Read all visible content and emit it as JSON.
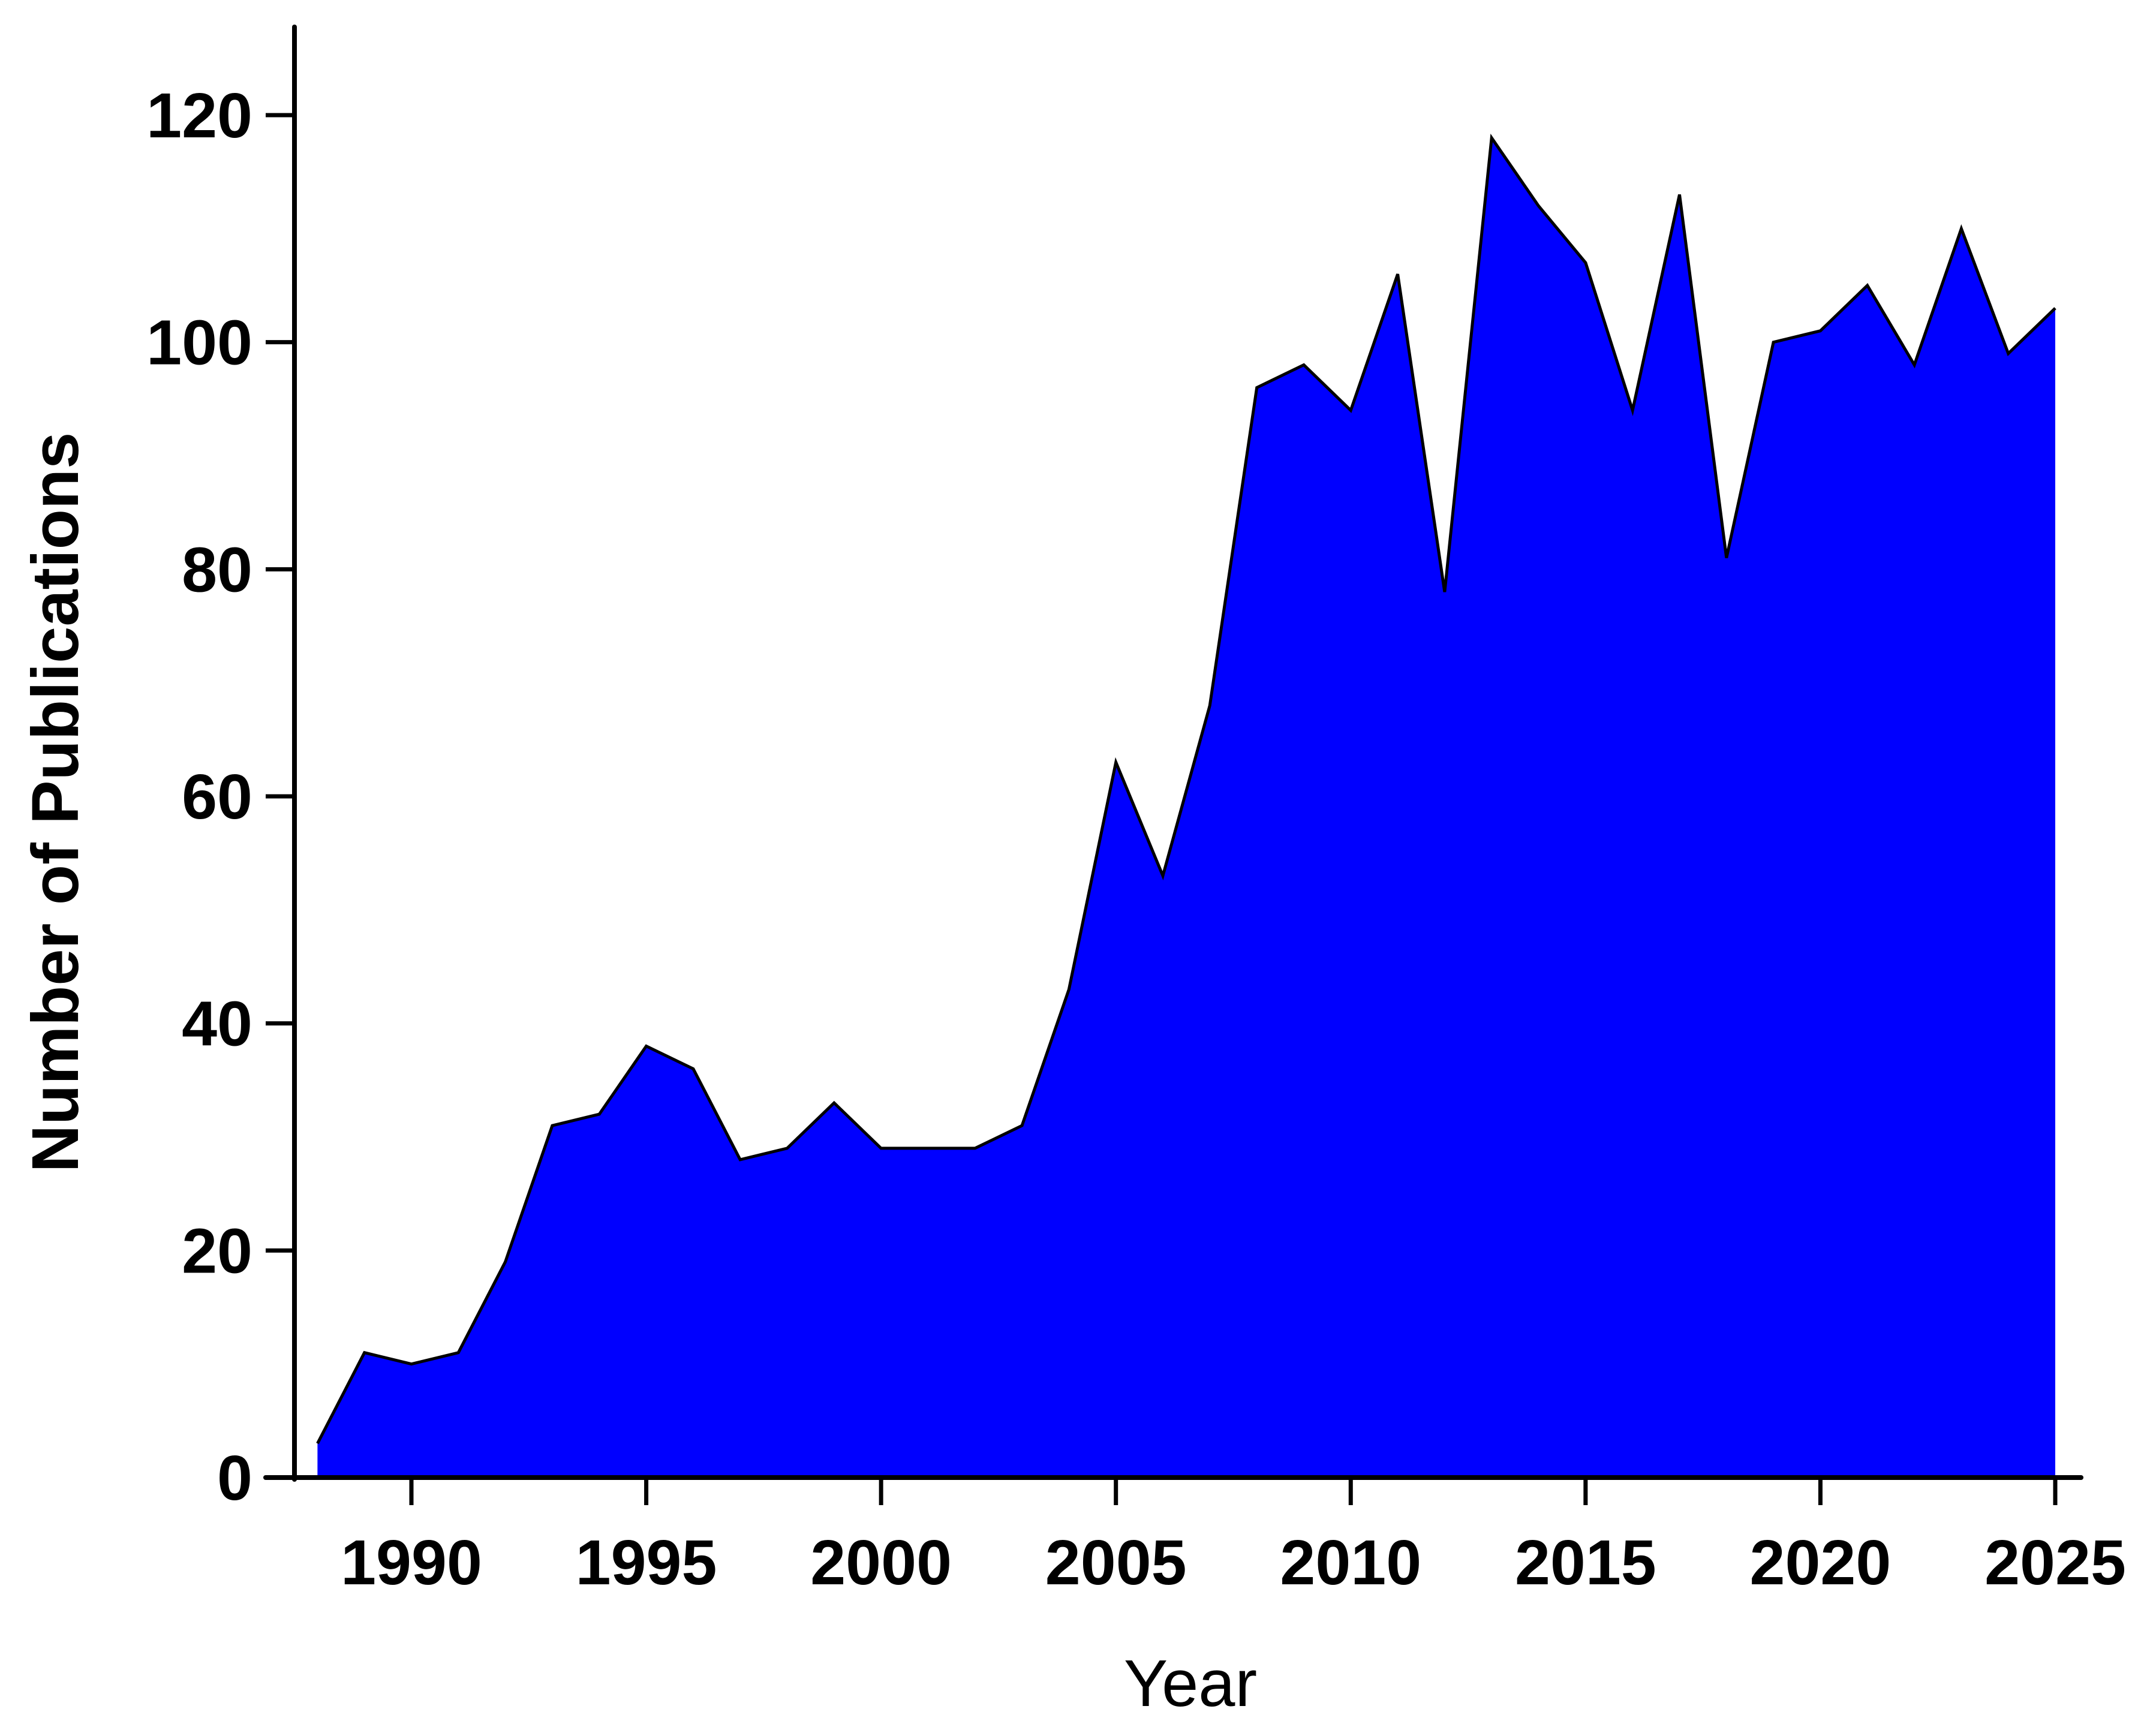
{
  "chart_data": {
    "type": "area",
    "title": "",
    "xlabel": "Year",
    "ylabel": "Number of Publications",
    "xlim": [
      1987.5,
      2025.5
    ],
    "ylim": [
      0,
      127
    ],
    "x_ticks": [
      1990,
      1995,
      2000,
      2005,
      2010,
      2015,
      2020,
      2025
    ],
    "y_ticks": [
      0,
      20,
      40,
      60,
      80,
      100,
      120
    ],
    "grid": false,
    "legend": "none",
    "fill_color": "#0000ff",
    "line_color": "#000000",
    "axis_color": "#000000",
    "x": [
      1988,
      1989,
      1990,
      1991,
      1992,
      1993,
      1994,
      1995,
      1996,
      1997,
      1998,
      1999,
      2000,
      2001,
      2002,
      2003,
      2004,
      2005,
      2006,
      2007,
      2008,
      2009,
      2010,
      2011,
      2012,
      2013,
      2014,
      2015,
      2016,
      2017,
      2018,
      2019,
      2020,
      2021,
      2022,
      2023,
      2024,
      2025
    ],
    "values": [
      3,
      11,
      10,
      11,
      19,
      31,
      32,
      38,
      36,
      28,
      29,
      33,
      29,
      29,
      29,
      31,
      43,
      63,
      53,
      68,
      96,
      98,
      94,
      106,
      78,
      118,
      112,
      107,
      94,
      113,
      81,
      100,
      101,
      105,
      98,
      110,
      99,
      103
    ]
  }
}
